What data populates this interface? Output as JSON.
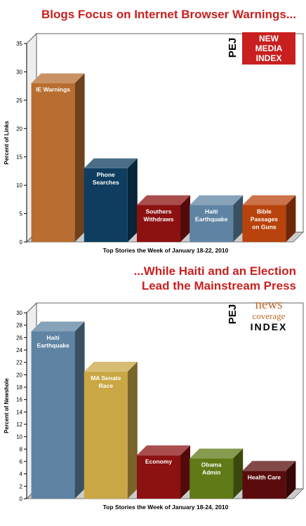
{
  "charts": [
    {
      "headline": [
        "Blogs Focus on Internet Browser Warnings..."
      ],
      "logo": {
        "side": "PEJ",
        "lines": [
          "NEW",
          "MEDIA",
          "INDEX"
        ],
        "style": "boxed"
      },
      "colors": {
        "frame": "#555555"
      },
      "chart_data": {
        "type": "bar",
        "categories": [
          "IE Warnings",
          "Phone Searches",
          "Southers Withdraws",
          "Haiti Earthquake",
          "Bible Passages on Guns"
        ],
        "label_lines": [
          [
            "IE Warnings"
          ],
          [
            "Phone",
            "Searches"
          ],
          [
            "Southers",
            "Withdraws"
          ],
          [
            "Haiti",
            "Earthquake"
          ],
          [
            "Bible",
            "Passages",
            "on Guns"
          ]
        ],
        "values": [
          28,
          13,
          6.5,
          6.5,
          6.5
        ],
        "colors": [
          "#b86e30",
          "#0e3d5f",
          "#8c1111",
          "#5f84a3",
          "#b8430c"
        ],
        "title": "",
        "xlabel": "Top Stories the Week of January 18-22, 2010",
        "ylabel": "Percent of Links",
        "ylim": [
          0,
          35
        ],
        "yticks": [
          0,
          5,
          10,
          15,
          20,
          25,
          30,
          35
        ],
        "grid": false
      }
    },
    {
      "headline": [
        "...While Haiti and an Election",
        "Lead the Mainstream Press"
      ],
      "logo": {
        "side": "PEJ",
        "lines": [
          "news",
          "coverage",
          "INDEX"
        ],
        "style": "plain"
      },
      "colors": {
        "frame": "#555555"
      },
      "chart_data": {
        "type": "bar",
        "categories": [
          "Haiti Earthquake",
          "MA Senate Race",
          "Economy",
          "Obama Admin",
          "Health Care"
        ],
        "label_lines": [
          [
            "Haiti",
            "Earthquake"
          ],
          [
            "MA Senate",
            "Race"
          ],
          [
            "Economy"
          ],
          [
            "Obama",
            "Admin"
          ],
          [
            "Health Care"
          ]
        ],
        "values": [
          27,
          20.5,
          7,
          6.5,
          4.5
        ],
        "colors": [
          "#5f84a3",
          "#c9a744",
          "#8c1111",
          "#5f7a16",
          "#5a0c0c"
        ],
        "title": "",
        "xlabel": "Top Stories the Week of January 18-24, 2010",
        "ylabel": "Percent of Newshole",
        "ylim": [
          0,
          30
        ],
        "yticks": [
          0,
          2,
          4,
          6,
          8,
          10,
          12,
          14,
          16,
          18,
          20,
          22,
          24,
          26,
          28,
          30
        ],
        "grid": false
      }
    }
  ]
}
